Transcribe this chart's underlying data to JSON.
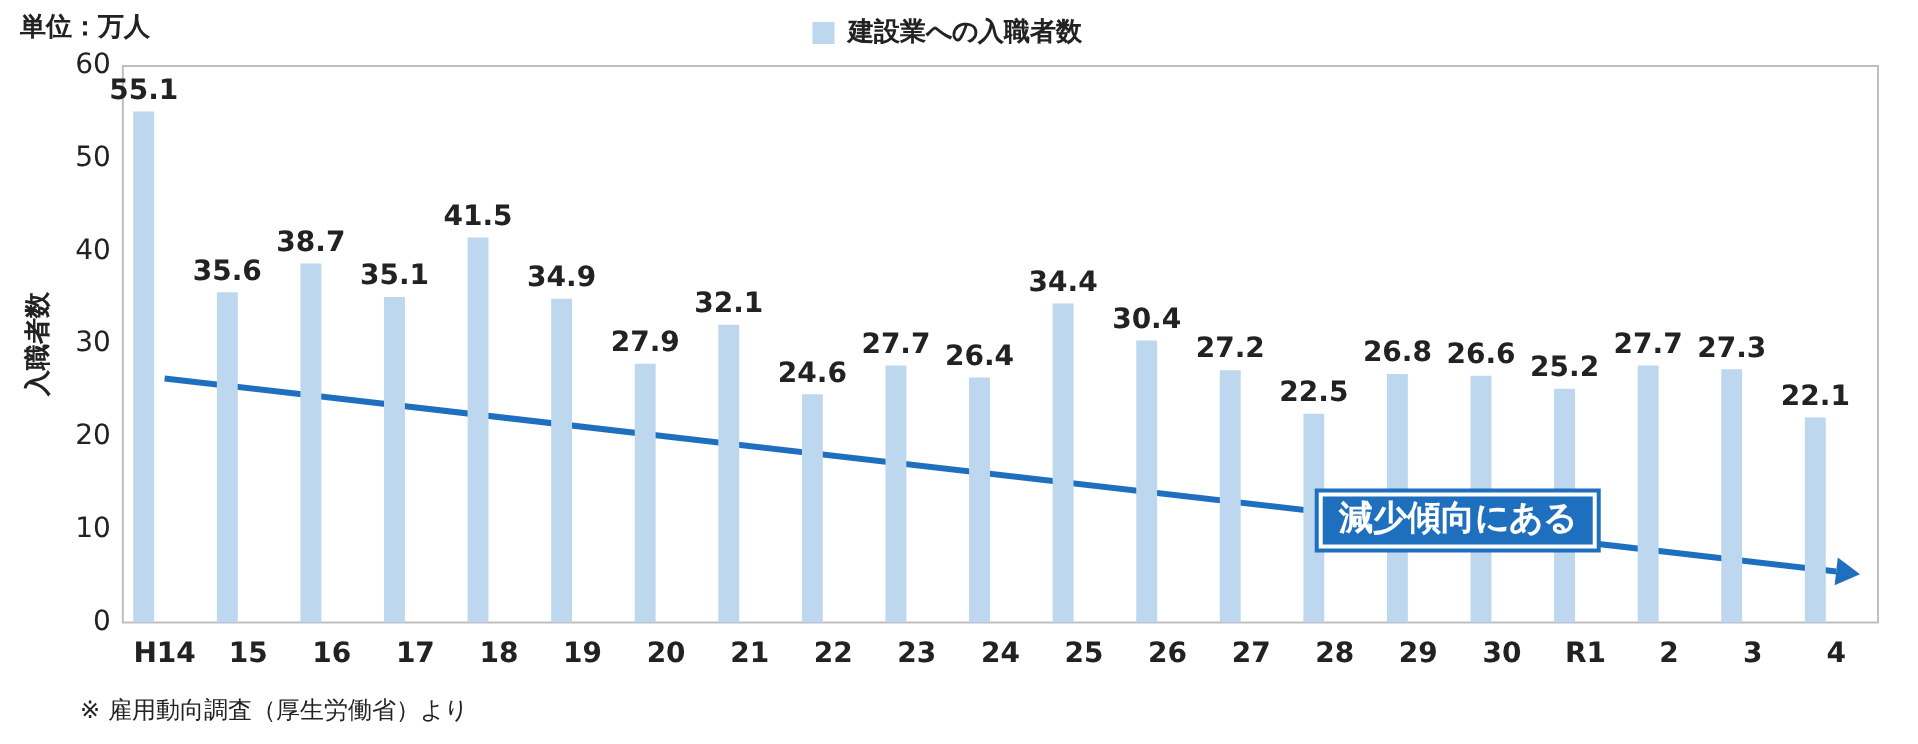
{
  "chart_data": {
    "type": "bar",
    "ylabel": "入職者数",
    "legend": "top",
    "categories": [
      "H14",
      "15",
      "16",
      "17",
      "18",
      "19",
      "20",
      "21",
      "22",
      "23",
      "24",
      "25",
      "26",
      "27",
      "28",
      "29",
      "30",
      "R1",
      "2",
      "3",
      "4"
    ],
    "series": [
      {
        "name": "建設業への入職者数",
        "color": "#bdd7ee",
        "values": [
          55.1,
          35.6,
          38.7,
          35.1,
          41.5,
          34.9,
          27.9,
          32.1,
          24.6,
          27.7,
          26.4,
          34.4,
          30.4,
          27.2,
          22.5,
          26.8,
          26.6,
          25.2,
          27.7,
          27.3,
          22.1
        ],
        "value_labels": [
          "55.1",
          "35.6",
          "38.7",
          "35.1",
          "41.5",
          "34.9",
          "27.9",
          "32.1",
          "24.6",
          "27.7",
          "26.4",
          "34.4",
          "30.4",
          "27.2",
          "22.5",
          "26.8",
          "26.6",
          "25.2",
          "27.7",
          "27.3",
          "22.1"
        ]
      },
      {
        "type": "line",
        "color": "#1f6fbf",
        "x": [
          "H14",
          "4"
        ],
        "values": [
          26.3,
          5.5
        ]
      }
    ],
    "ylim": [
      0,
      60
    ],
    "yticks": [
      0,
      10,
      20,
      30,
      40,
      50,
      60
    ],
    "grid": false,
    "annotations": [
      "単位：万人",
      {
        "text": "減少傾向にある",
        "x": "28",
        "y": 11
      },
      "※ 雇用動向調査（厚生労働省）より"
    ]
  }
}
